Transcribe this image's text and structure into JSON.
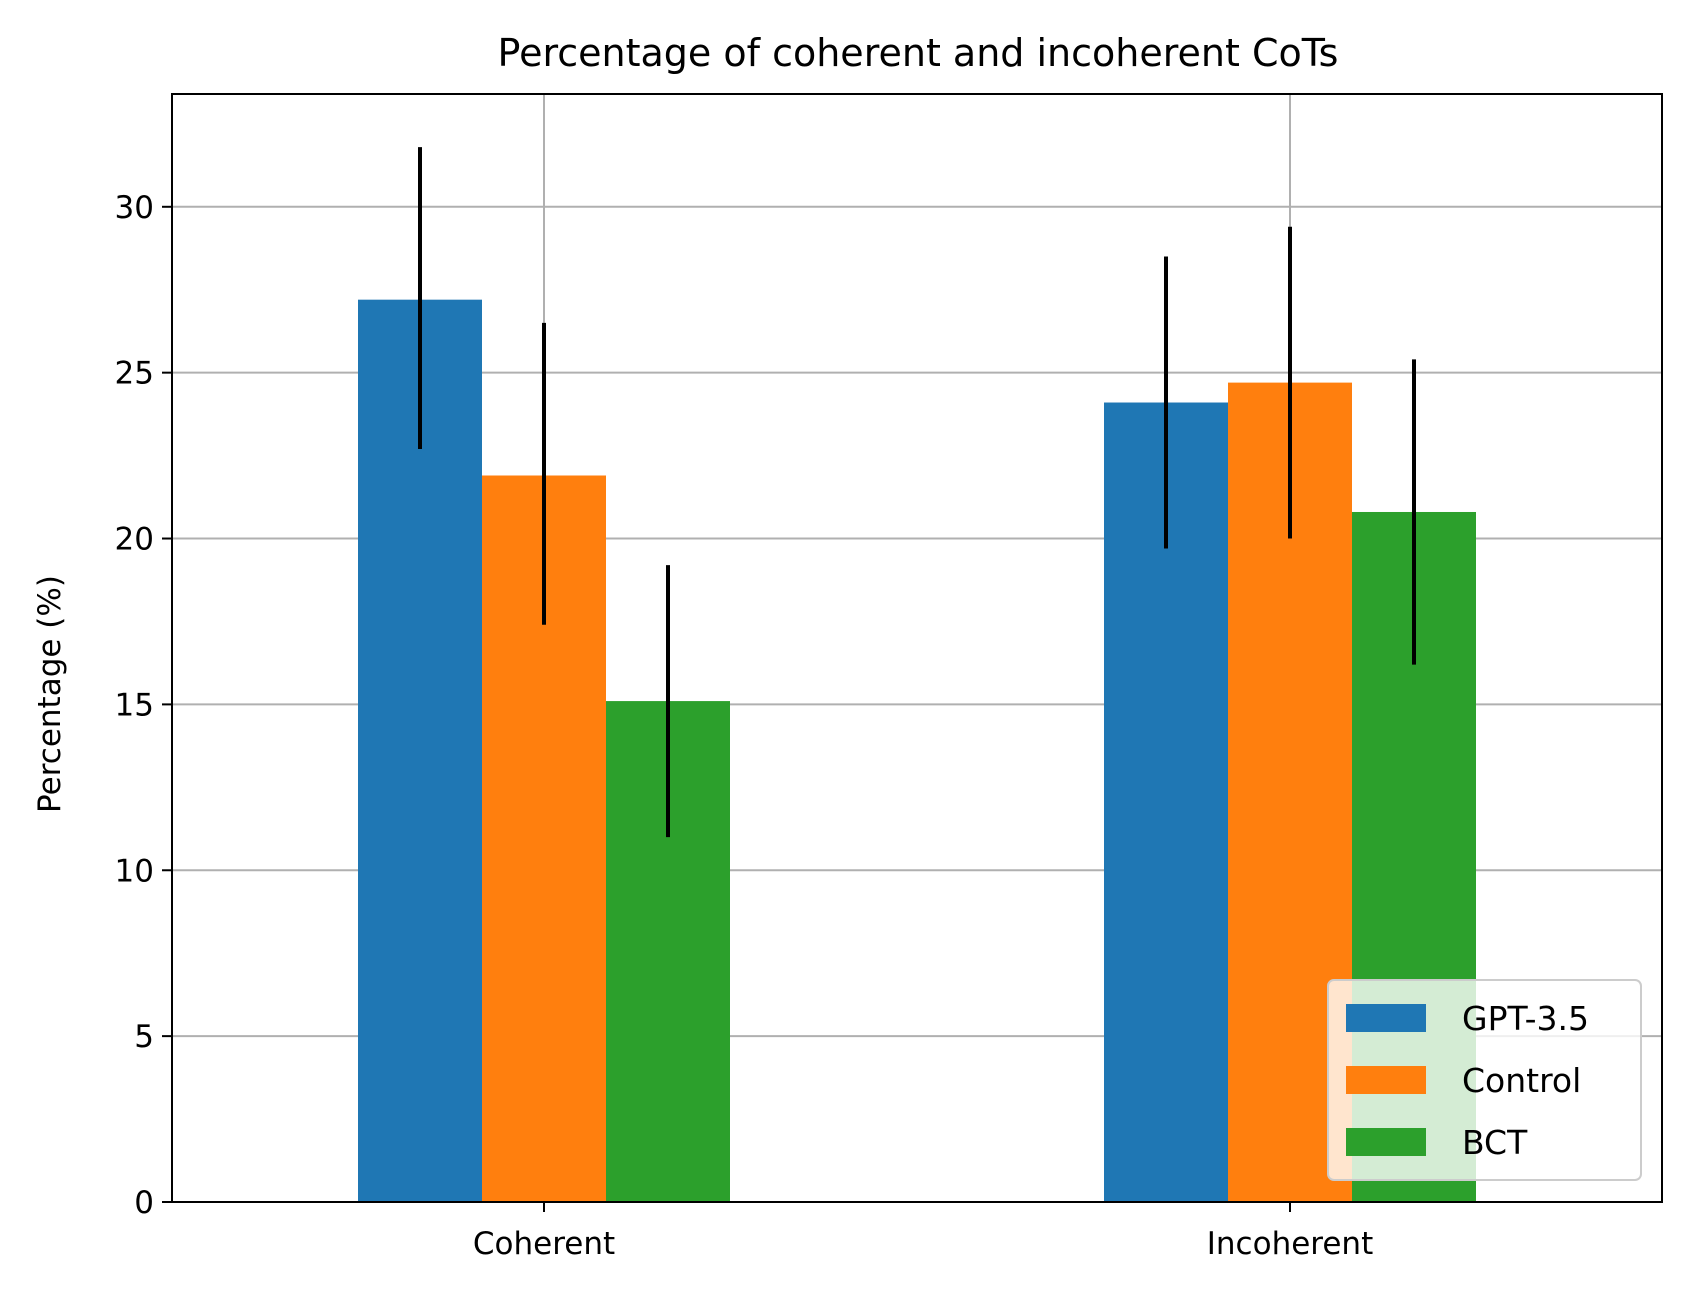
{
  "chart_data": {
    "type": "bar",
    "title": "Percentage of coherent and incoherent CoTs",
    "xlabel": "",
    "ylabel": "Percentage (%)",
    "categories": [
      "Coherent",
      "Incoherent"
    ],
    "series": [
      {
        "name": "GPT-3.5",
        "color": "#1f77b4",
        "values": [
          27.2,
          24.1
        ],
        "err_low": [
          22.7,
          19.7
        ],
        "err_high": [
          31.8,
          28.5
        ]
      },
      {
        "name": "Control",
        "color": "#ff7f0e",
        "values": [
          21.9,
          24.7
        ],
        "err_low": [
          17.4,
          20.0
        ],
        "err_high": [
          26.5,
          29.4
        ]
      },
      {
        "name": "BCT",
        "color": "#2ca02c",
        "values": [
          15.1,
          20.8
        ],
        "err_low": [
          11.0,
          16.2
        ],
        "err_high": [
          19.2,
          25.4
        ]
      }
    ],
    "yticks": [
      "0",
      "5",
      "10",
      "15",
      "20",
      "25",
      "30"
    ],
    "ylim": [
      0,
      33.4
    ],
    "grid": true,
    "legend_position": "lower-right"
  }
}
